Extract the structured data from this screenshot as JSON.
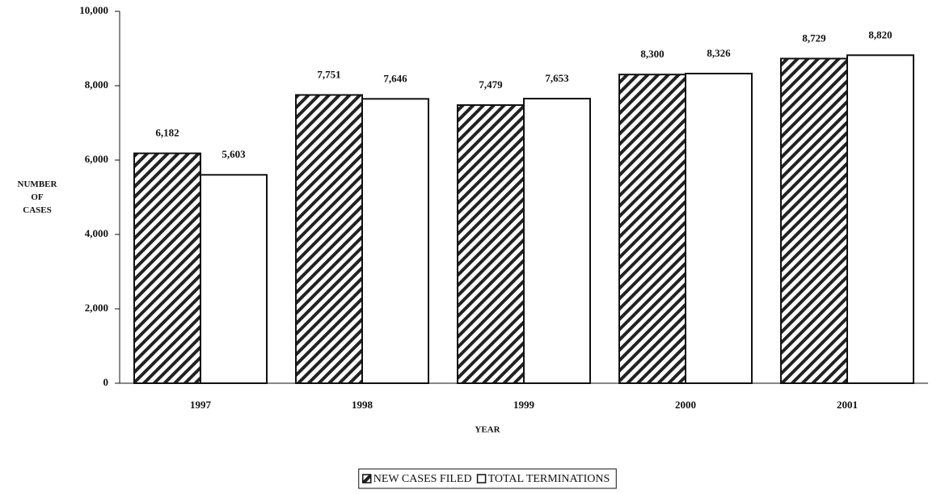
{
  "chart_data": {
    "type": "bar",
    "xlabel": "YEAR",
    "ylabel": "NUMBER OF CASES",
    "categories": [
      "1997",
      "1998",
      "1999",
      "2000",
      "2001"
    ],
    "series": [
      {
        "name": "NEW CASES FILED",
        "color": "#222222",
        "hatch": true,
        "values": [
          6182,
          7751,
          7479,
          8300,
          8729
        ],
        "value_labels": [
          "6,182",
          "7,751",
          "7,479",
          "8,300",
          "8,729"
        ]
      },
      {
        "name": "TOTAL TERMINATIONS",
        "color": "#ffffff",
        "hatch": false,
        "values": [
          5603,
          7646,
          7653,
          8326,
          8820
        ],
        "value_labels": [
          "5,603",
          "7,646",
          "7,653",
          "8,326",
          "8,820"
        ]
      }
    ],
    "ylim": [
      0,
      10000
    ],
    "yticks": [
      0,
      {
        "value": 2000,
        "label": "2,000"
      },
      {
        "value": 4000,
        "label": "4,000"
      },
      {
        "value": 6000,
        "label": "6,000"
      },
      {
        "value": 8000,
        "label": "8,000"
      },
      {
        "value": 10000,
        "label": "10,000"
      }
    ],
    "legend": "bottom"
  }
}
